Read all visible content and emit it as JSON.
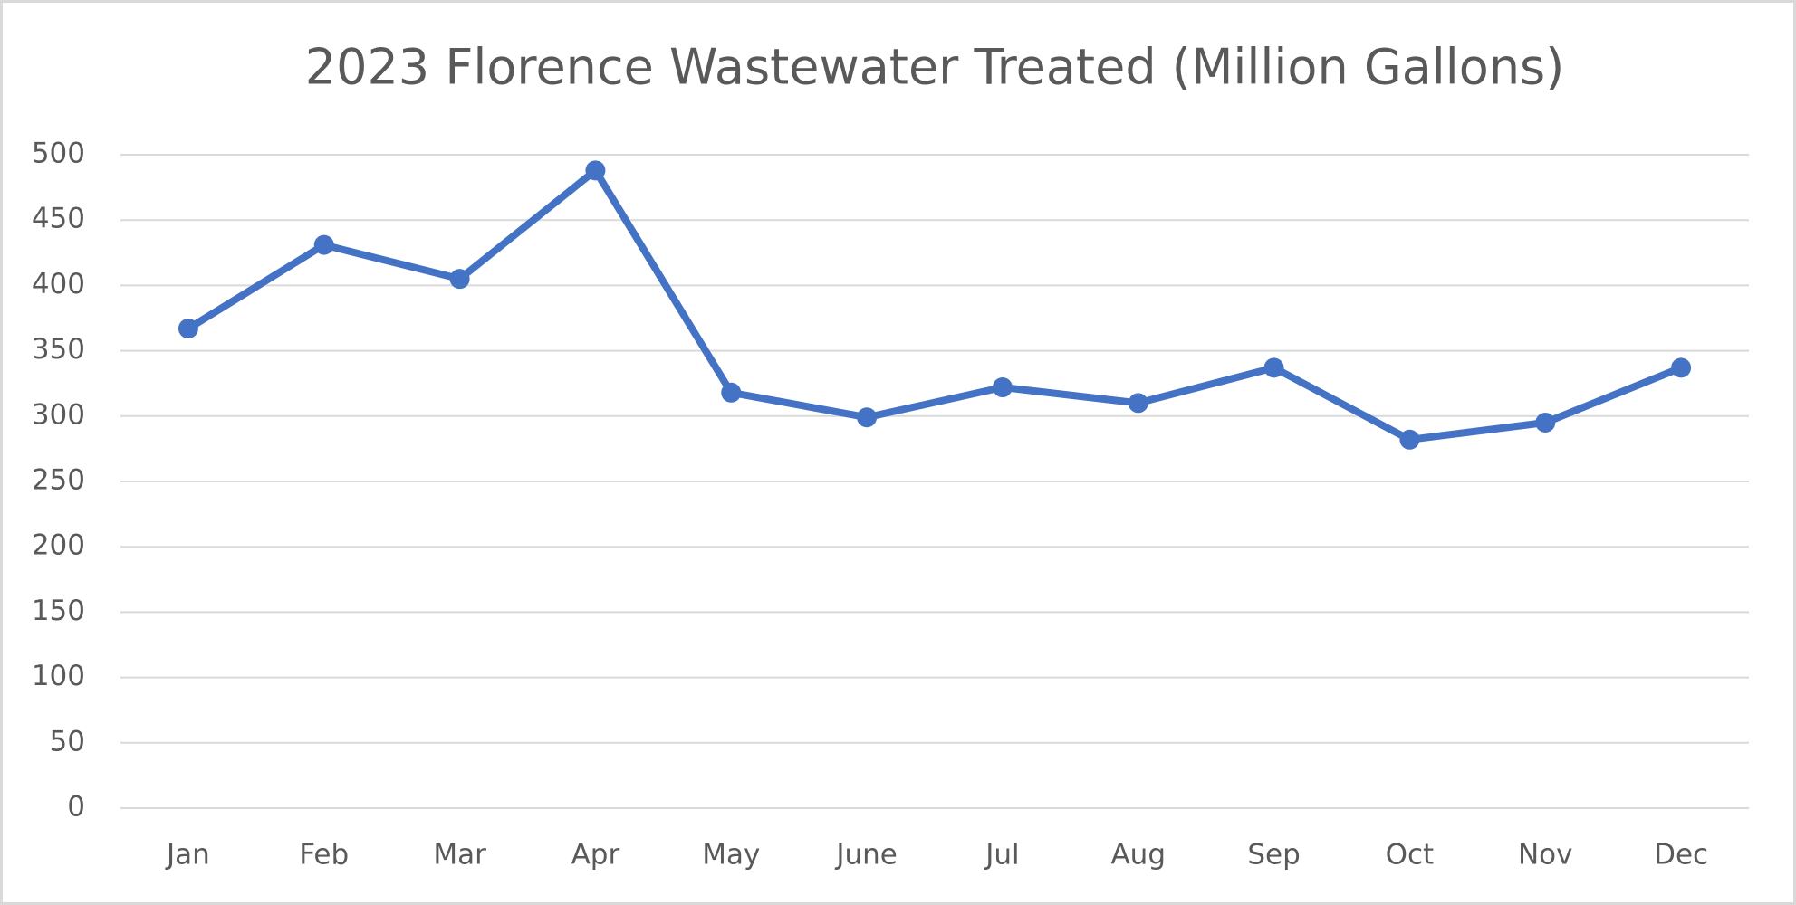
{
  "chart_data": {
    "type": "line",
    "title": "2023 Florence Wastewater Treated (Million Gallons)",
    "categories": [
      "Jan",
      "Feb",
      "Mar",
      "Apr",
      "May",
      "June",
      "Jul",
      "Aug",
      "Sep",
      "Oct",
      "Nov",
      "Dec"
    ],
    "values": [
      367,
      431,
      405,
      488,
      318,
      299,
      322,
      310,
      337,
      282,
      295,
      337
    ],
    "color": "#4472c4",
    "ylim": [
      0,
      500
    ],
    "yticks": [
      0,
      50,
      100,
      150,
      200,
      250,
      300,
      350,
      400,
      450,
      500
    ],
    "grid": true
  }
}
